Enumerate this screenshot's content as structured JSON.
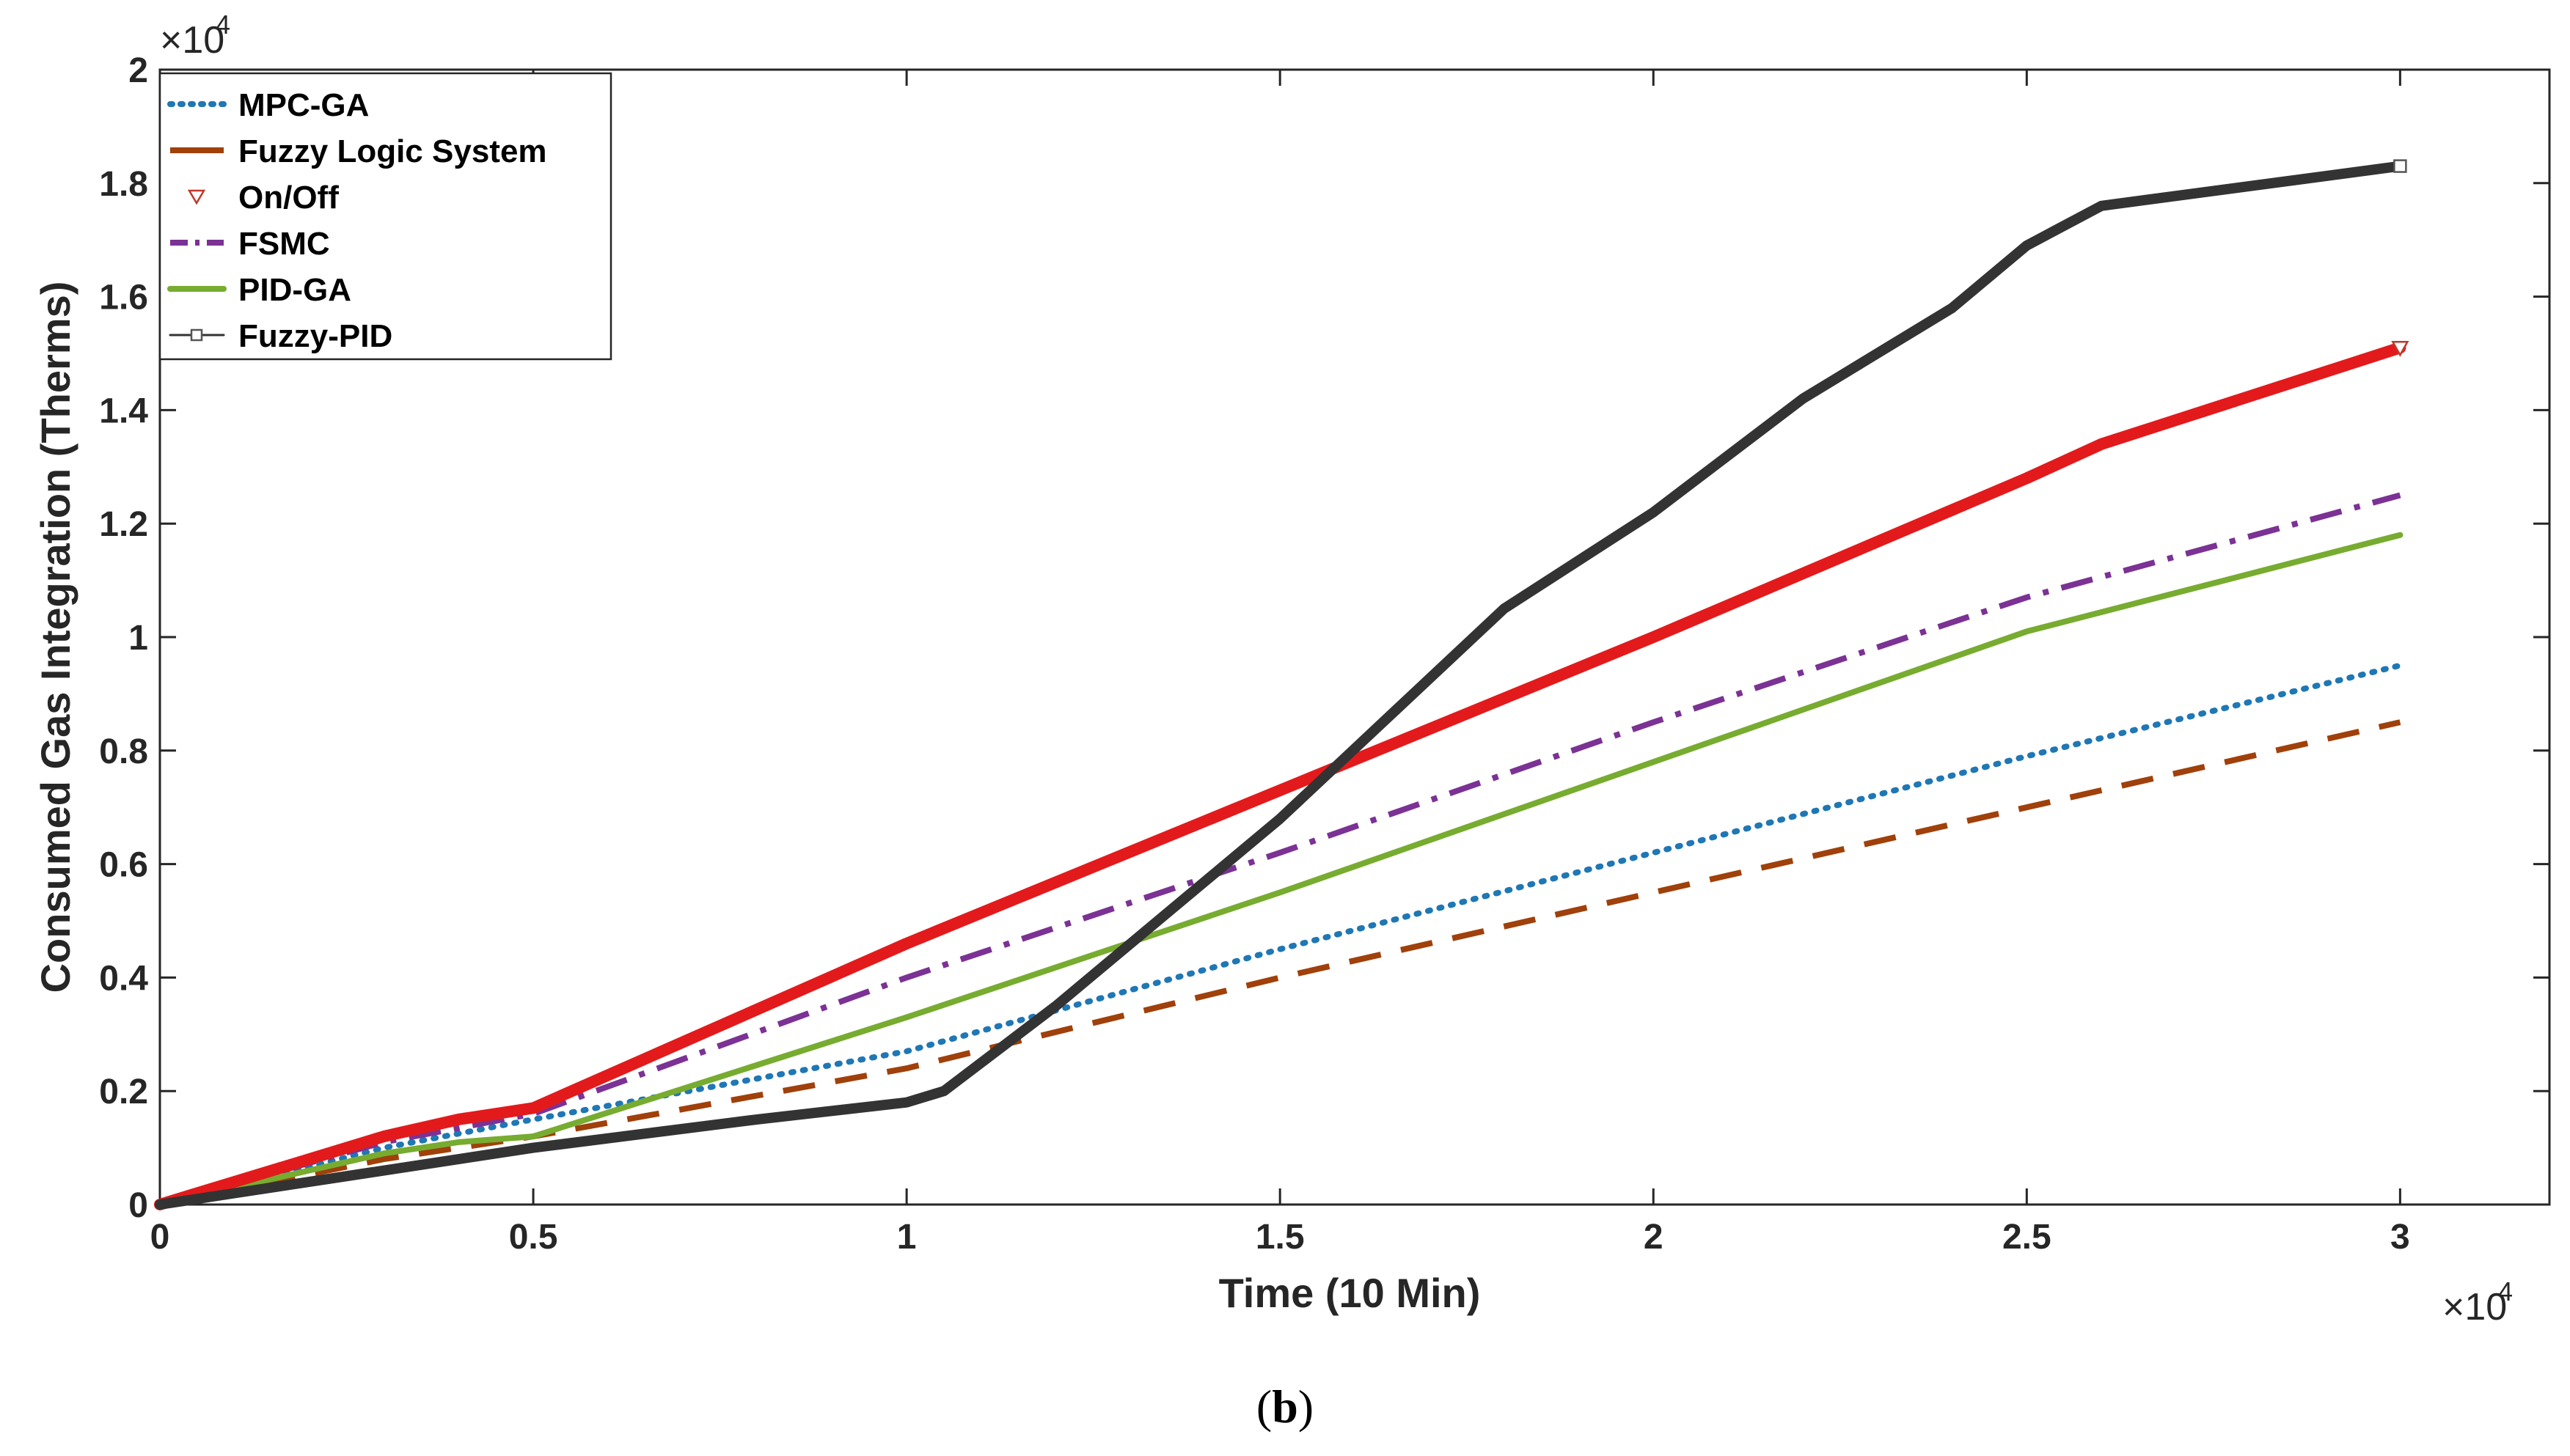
{
  "chart_data": {
    "type": "line",
    "title": "",
    "xlabel": "Time (10 Min)",
    "ylabel": "Consumed Gas Integration (Therms)",
    "xlim": [
      0,
      3.2
    ],
    "ylim": [
      0,
      2.0
    ],
    "x_exponent_label": "×10",
    "y_exponent_label": "×10",
    "x_exponent_power": "4",
    "y_exponent_power": "4",
    "xticks": [
      "0",
      "0.5",
      "1",
      "1.5",
      "2",
      "2.5",
      "3"
    ],
    "yticks": [
      "0",
      "0.2",
      "0.4",
      "0.6",
      "0.8",
      "1",
      "1.2",
      "1.4",
      "1.6",
      "1.8",
      "2"
    ],
    "x_tick_values": [
      0,
      0.5,
      1,
      1.5,
      2,
      2.5,
      3
    ],
    "y_tick_values": [
      0,
      0.2,
      0.4,
      0.6,
      0.8,
      1.0,
      1.2,
      1.4,
      1.6,
      1.8,
      2.0
    ],
    "grid": false,
    "legend_position": "top-left",
    "caption_open": "(",
    "caption_letter": "b",
    "caption_close": ")",
    "series": [
      {
        "name": "MPC-GA",
        "color": "#1f77b4",
        "style": "dotted",
        "x": [
          0,
          0.3,
          0.5,
          1.0,
          1.5,
          2.0,
          2.5,
          3.0
        ],
        "y": [
          0,
          0.1,
          0.15,
          0.27,
          0.45,
          0.62,
          0.79,
          0.95
        ]
      },
      {
        "name": "Fuzzy Logic System",
        "color": "#a0400a",
        "style": "dashed",
        "x": [
          0,
          0.3,
          0.5,
          1.0,
          1.5,
          2.0,
          2.5,
          3.0
        ],
        "y": [
          0,
          0.08,
          0.12,
          0.24,
          0.4,
          0.55,
          0.7,
          0.85
        ]
      },
      {
        "name": "On/Off",
        "color": "#e31a1c",
        "style": "thick",
        "x": [
          0,
          0.1,
          0.2,
          0.3,
          0.4,
          0.5,
          1.0,
          1.5,
          2.0,
          2.5,
          2.6,
          3.0
        ],
        "y": [
          0,
          0.04,
          0.08,
          0.12,
          0.15,
          0.17,
          0.46,
          0.73,
          1.0,
          1.28,
          1.34,
          1.51
        ]
      },
      {
        "name": "FSMC",
        "color": "#7b3294",
        "style": "dashdot",
        "x": [
          0,
          0.3,
          0.5,
          1.0,
          1.5,
          2.0,
          2.5,
          3.0
        ],
        "y": [
          0,
          0.11,
          0.16,
          0.4,
          0.62,
          0.85,
          1.07,
          1.25
        ]
      },
      {
        "name": "PID-GA",
        "color": "#77ac30",
        "style": "solid",
        "x": [
          0,
          0.3,
          0.4,
          0.5,
          1.0,
          1.5,
          2.0,
          2.5,
          3.0
        ],
        "y": [
          0,
          0.09,
          0.11,
          0.12,
          0.33,
          0.55,
          0.78,
          1.01,
          1.18
        ]
      },
      {
        "name": "Fuzzy-PID",
        "color": "#333333",
        "style": "thick-marker",
        "x": [
          0,
          0.1,
          0.5,
          0.8,
          1.0,
          1.05,
          1.2,
          1.5,
          1.8,
          2.0,
          2.2,
          2.4,
          2.5,
          2.6,
          3.0
        ],
        "y": [
          0,
          0.02,
          0.1,
          0.15,
          0.18,
          0.2,
          0.35,
          0.68,
          1.05,
          1.22,
          1.42,
          1.58,
          1.69,
          1.76,
          1.83
        ]
      }
    ]
  }
}
